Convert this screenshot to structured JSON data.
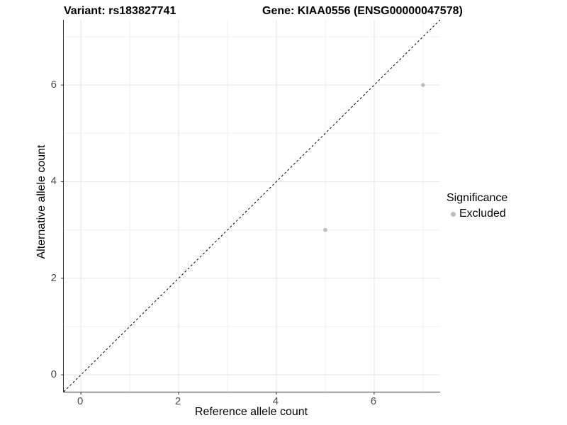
{
  "titles": {
    "left": "Variant: rs183827741",
    "right": "Gene: KIAA0556 (ENSG00000047578)"
  },
  "chart_data": {
    "type": "scatter",
    "xlabel": "Reference allele count",
    "ylabel": "Alternative allele count",
    "xlim": [
      -0.35,
      7.35
    ],
    "ylim": [
      -0.35,
      7.35
    ],
    "x_ticks": [
      0,
      2,
      4,
      6
    ],
    "y_ticks": [
      0,
      2,
      4,
      6
    ],
    "x_minor_ticks": [
      1,
      3,
      5,
      7
    ],
    "y_minor_ticks": [
      1,
      3,
      5,
      7
    ],
    "grid": true,
    "identity_line": {
      "equation": "y = x",
      "style": "dashed",
      "color": "#000000"
    },
    "series": [
      {
        "name": "Excluded",
        "color": "#bdbdbd",
        "points": [
          [
            5,
            3
          ],
          [
            7,
            6
          ]
        ]
      }
    ],
    "legend": {
      "position": "right",
      "title": "Significance",
      "entries": [
        {
          "label": "Excluded",
          "color": "#bdbdbd"
        }
      ]
    },
    "colors": {
      "major_grid": "#e5e5e5",
      "minor_grid": "#f0f0f0",
      "axis_line": "#333333",
      "tick_text": "#4d4d4d"
    }
  }
}
